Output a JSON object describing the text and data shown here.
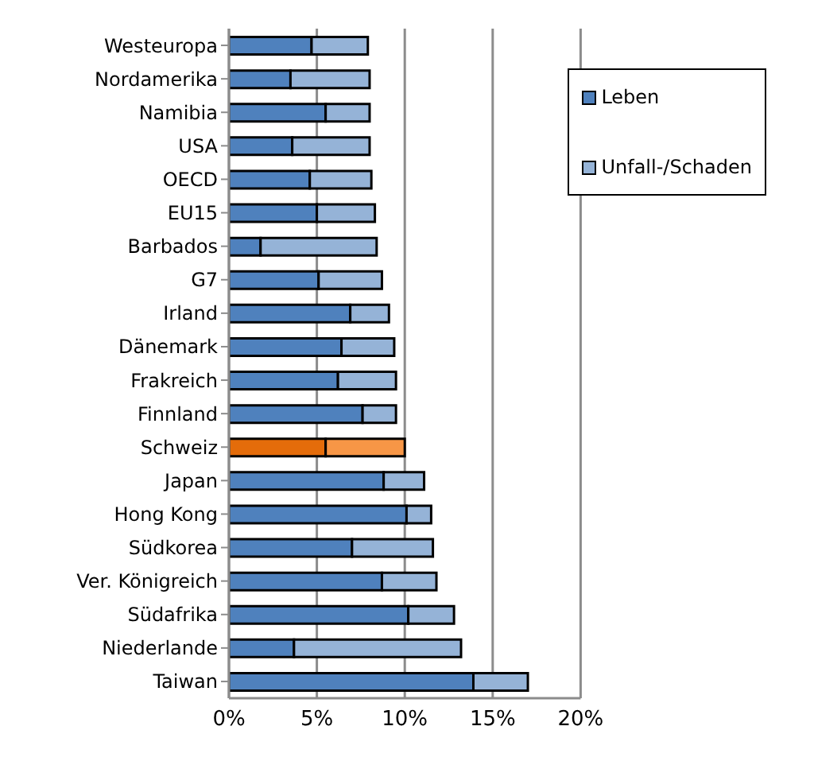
{
  "chart_data": {
    "type": "bar",
    "orientation": "horizontal",
    "stacked": true,
    "categories": [
      "Westeuropa",
      "Nordamerika",
      "Namibia",
      "USA",
      "OECD",
      "EU15",
      "Barbados",
      "G7",
      "Irland",
      "Dänemark",
      "Frakreich",
      "Finnland",
      "Schweiz",
      "Japan",
      "Hong Kong",
      "Südkorea",
      "Ver. Königreich",
      "Südafrika",
      "Niederlande",
      "Taiwan"
    ],
    "series": [
      {
        "name": "Leben",
        "color": "#4f81bd",
        "colors": [
          "#4f81bd",
          "#4f81bd",
          "#4f81bd",
          "#4f81bd",
          "#4f81bd",
          "#4f81bd",
          "#4f81bd",
          "#4f81bd",
          "#4f81bd",
          "#4f81bd",
          "#4f81bd",
          "#4f81bd",
          "#e46c0a",
          "#4f81bd",
          "#4f81bd",
          "#4f81bd",
          "#4f81bd",
          "#4f81bd",
          "#4f81bd",
          "#4f81bd"
        ],
        "values": [
          4.7,
          3.5,
          5.5,
          3.6,
          4.6,
          5.0,
          1.8,
          5.1,
          6.9,
          6.4,
          6.2,
          7.6,
          5.5,
          8.8,
          10.1,
          7.0,
          8.7,
          10.2,
          3.7,
          13.9
        ]
      },
      {
        "name": "Unfall-/Schaden",
        "color": "#95b3d7",
        "colors": [
          "#95b3d7",
          "#95b3d7",
          "#95b3d7",
          "#95b3d7",
          "#95b3d7",
          "#95b3d7",
          "#95b3d7",
          "#95b3d7",
          "#95b3d7",
          "#95b3d7",
          "#95b3d7",
          "#95b3d7",
          "#f79646",
          "#95b3d7",
          "#95b3d7",
          "#95b3d7",
          "#95b3d7",
          "#95b3d7",
          "#95b3d7",
          "#95b3d7"
        ],
        "values": [
          3.2,
          4.5,
          2.5,
          4.4,
          3.5,
          3.3,
          6.6,
          3.6,
          2.2,
          3.0,
          3.3,
          1.9,
          4.5,
          2.3,
          1.4,
          4.6,
          3.1,
          2.6,
          9.5,
          3.1
        ]
      }
    ],
    "xlim": [
      0,
      20
    ],
    "xticks": [
      {
        "value": 0,
        "label": "0%"
      },
      {
        "value": 5,
        "label": "5%"
      },
      {
        "value": 10,
        "label": "10%"
      },
      {
        "value": 15,
        "label": "15%"
      },
      {
        "value": 20,
        "label": "20%"
      }
    ],
    "grid": "x",
    "legend": "top right"
  }
}
